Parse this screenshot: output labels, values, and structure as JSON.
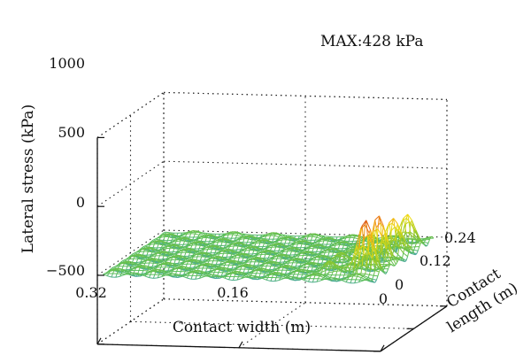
{
  "chart_data": {
    "type": "surface",
    "annotation": "MAX:428 kPa",
    "zlabel": "Lateral stress (kPa)",
    "xlabel": "Contact width (m)",
    "ylabel_line1": "Contact",
    "ylabel_line2": "length (m)",
    "zticks": [
      "1000",
      "500",
      "0",
      "−500"
    ],
    "z_values": [
      1000,
      500,
      0,
      -500
    ],
    "xticks": [
      "0.32",
      "0.16",
      "0"
    ],
    "x_values": [
      0.32,
      0.16,
      0
    ],
    "yticks": [
      "0",
      "0.12",
      "0.24"
    ],
    "y_values": [
      0,
      0.12,
      0.24
    ],
    "zlim": [
      -500,
      1000
    ],
    "xlim": [
      0,
      0.32
    ],
    "ylim": [
      0,
      0.24
    ],
    "grid": true,
    "peak_rows": [
      {
        "x": 0.032,
        "y_positions": [
          0.045,
          0.095,
          0.145,
          0.195
        ],
        "peaks": [
          400,
          330,
          290,
          220
        ],
        "troughs": [
          -150,
          -150,
          -150,
          -150
        ]
      },
      {
        "x": 0.072,
        "y_positions": [
          0.045,
          0.095,
          0.145,
          0.195
        ],
        "peaks": [
          80,
          60,
          60,
          60
        ],
        "troughs": [
          -40,
          -40,
          -40,
          -40
        ]
      }
    ]
  }
}
